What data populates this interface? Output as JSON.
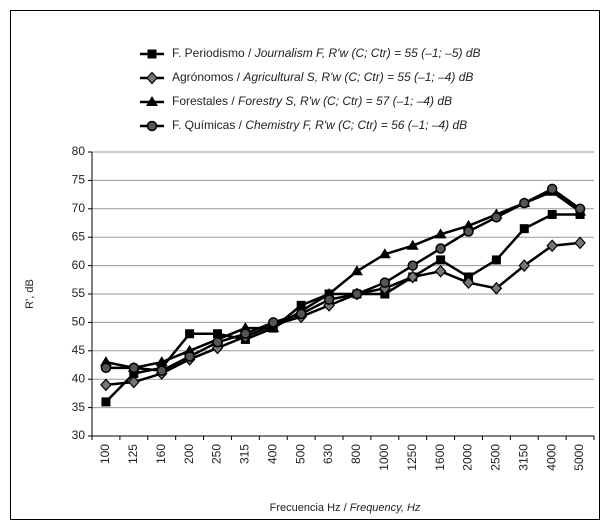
{
  "chart_data": {
    "type": "line",
    "x_label": "Frecuencia Hz / Frequency, Hz",
    "y_label": "R', dB",
    "categories": [
      "100",
      "125",
      "160",
      "200",
      "250",
      "315",
      "400",
      "500",
      "630",
      "800",
      "1000",
      "1250",
      "1600",
      "2000",
      "2500",
      "3150",
      "4000",
      "5000"
    ],
    "series": [
      {
        "name": "F. Periodismo / Journalism F, R'w (C; Ctr) = 55 (–1; –5) dB",
        "color": "#000000",
        "marker": "square",
        "values": [
          36,
          41,
          42,
          48,
          48,
          47,
          49,
          53,
          55,
          55,
          55,
          58,
          61,
          58,
          61,
          66.5,
          69,
          69
        ]
      },
      {
        "name": "Agrónomos / Agricultural S, R'w (C; Ctr) = 55 (–1; –4) dB",
        "color": "#000000",
        "marker": "diamond",
        "values": [
          39,
          39.5,
          41,
          43.5,
          45.5,
          47.5,
          49.5,
          51,
          53,
          55,
          56,
          58,
          59,
          57,
          56,
          60,
          63.5,
          64
        ]
      },
      {
        "name": "Forestales / Forestry S, R'w (C; Ctr) = 57 (–1; –4) dB",
        "color": "#000000",
        "marker": "triangle",
        "values": [
          43,
          42,
          43,
          45,
          47,
          49,
          49,
          52,
          55,
          59,
          62,
          63.5,
          65.5,
          67,
          69,
          71,
          73,
          69.5
        ]
      },
      {
        "name": "F. Químicas / Chemistry F, R'w (C; Ctr) = 56 (–1; –4) dB",
        "color": "#000000",
        "marker": "circle",
        "values": [
          42,
          42,
          41.5,
          44,
          46.5,
          48,
          50,
          51.5,
          54,
          55,
          57,
          60,
          63,
          66,
          68.5,
          71,
          73.5,
          70
        ]
      }
    ],
    "ylim": [
      30,
      80
    ],
    "yticks": [
      30,
      35,
      40,
      45,
      50,
      55,
      60,
      65,
      70,
      75,
      80
    ],
    "grid": true,
    "legend": "top"
  }
}
